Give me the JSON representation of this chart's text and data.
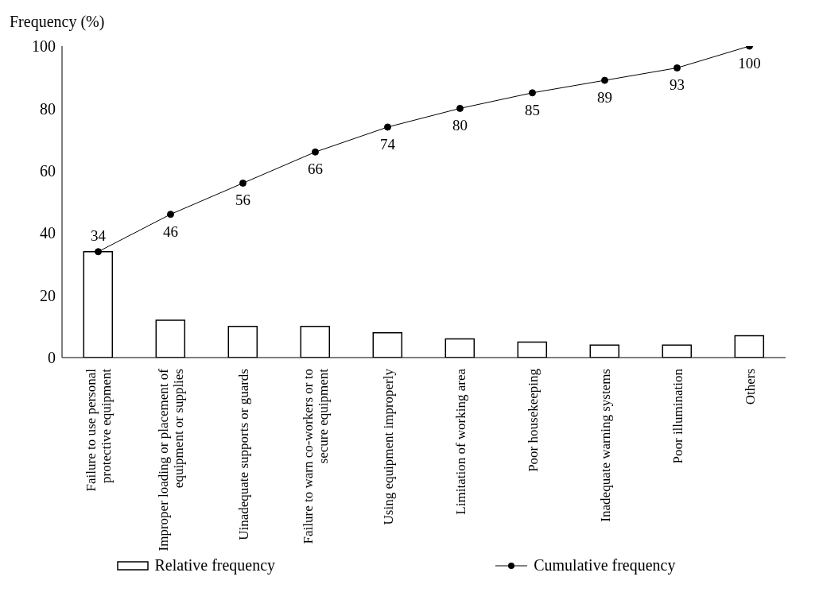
{
  "chart_data": {
    "type": "bar",
    "ylabel": "Frequency (%)",
    "categories": [
      "Failure to use personal protective equipment",
      "Improper loading or placement of equipment or supplies",
      "Uinadequate supports or guards",
      "Failure to warn co-workers or to secure equipment",
      "Using equipment improperly",
      "Limitation of working area",
      "Poor housekeeping",
      "Inadequate warning systems",
      "Poor illumination",
      "Others"
    ],
    "series": [
      {
        "name": "Relative frequency",
        "color": "#000000",
        "values": [
          34,
          12,
          10,
          10,
          8,
          6,
          5,
          4,
          4,
          7
        ]
      },
      {
        "name": "Cumulative frequency",
        "type": "line",
        "color": "#000000",
        "marker": "circle",
        "values": [
          34,
          46,
          56,
          66,
          74,
          80,
          85,
          89,
          93,
          100
        ],
        "value_labels": [
          "34",
          "46",
          "56",
          "66",
          "74",
          "80",
          "85",
          "89",
          "93",
          "100"
        ]
      }
    ],
    "ylim": [
      0,
      100
    ],
    "yticks": [
      0,
      20,
      40,
      60,
      80,
      100
    ],
    "legend": "bottom"
  }
}
